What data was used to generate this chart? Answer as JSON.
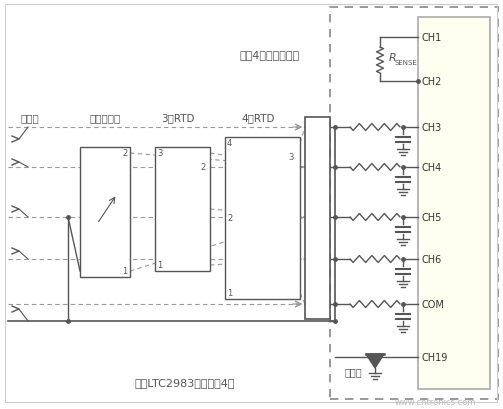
{
  "bg_color": "#ffffff",
  "chip_bg": "#fffff0",
  "chip_border": "#999999",
  "line_color": "#555555",
  "dashed_color": "#999999",
  "text_color": "#555555",
  "title_text": "所有4组传感器共用",
  "bottom_text": "每个LTC2983连接多达4组",
  "label_thermocouple": "热电偶",
  "label_thermistor": "热敏电阵器",
  "label_3rtd": "3线RTD",
  "label_4rtd": "4线RTD",
  "label_cold": "冷接点",
  "watermark": "www.cntronics.com",
  "channels": [
    "CH1",
    "CH2",
    "CH3",
    "CH4",
    "CH5",
    "CH6",
    "COM",
    "CH19"
  ]
}
